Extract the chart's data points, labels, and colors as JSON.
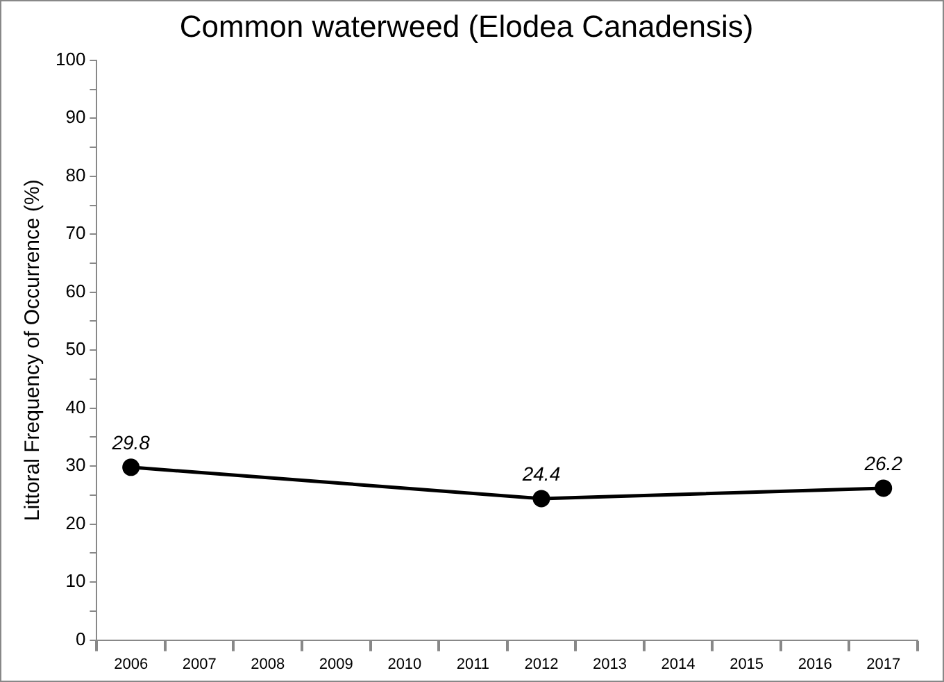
{
  "chart_data": {
    "type": "line",
    "title": "Common waterweed (Elodea Canadensis)",
    "ylabel": "Littoral Frequency of Occurrence (%)",
    "categories": [
      "2006",
      "2007",
      "2008",
      "2009",
      "2010",
      "2011",
      "2012",
      "2013",
      "2014",
      "2015",
      "2016",
      "2017"
    ],
    "series": [
      {
        "color": "#000000",
        "values": [
          29.8,
          null,
          null,
          null,
          null,
          null,
          24.4,
          null,
          null,
          null,
          null,
          26.2
        ]
      }
    ],
    "ylim": [
      0,
      100
    ],
    "yticks": [
      0,
      {
        "value": 5,
        "label": null
      },
      10,
      {
        "value": 15,
        "label": null
      },
      20,
      {
        "value": 25,
        "label": null
      },
      30,
      {
        "value": 35,
        "label": null
      },
      40,
      {
        "value": 45,
        "label": null
      },
      50,
      {
        "value": 55,
        "label": null
      },
      60,
      {
        "value": 65,
        "label": null
      },
      70,
      {
        "value": 75,
        "label": null
      },
      80,
      {
        "value": 85,
        "label": null
      },
      90,
      {
        "value": 95,
        "label": null
      },
      100
    ],
    "marker": "circle",
    "line_style": "solid",
    "data_labels": true,
    "grid": false,
    "legend": false
  }
}
